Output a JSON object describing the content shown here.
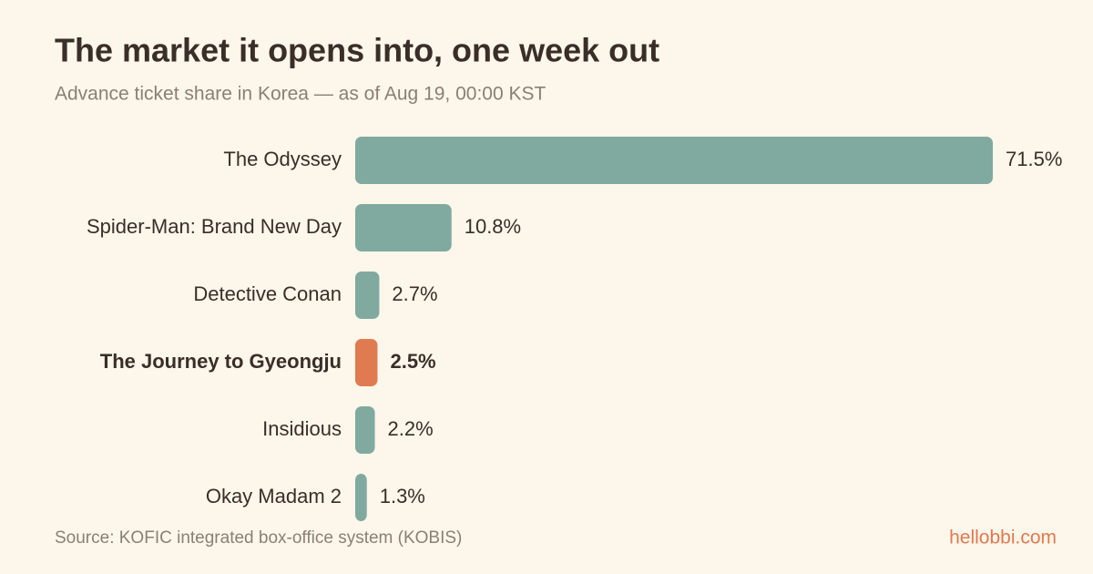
{
  "chart_data": {
    "type": "hbar",
    "title": "The market it opens into, one week out",
    "subtitle": "Advance ticket share in Korea — as of Aug 19, 00:00 KST",
    "categories": [
      "The Odyssey",
      "Spider-Man: Brand New Day",
      "Detective Conan",
      "The Journey to Gyeongju",
      "Insidious",
      "Okay Madam 2"
    ],
    "values": [
      71.5,
      10.8,
      2.7,
      2.5,
      2.2,
      1.3
    ],
    "value_labels": [
      "71.5%",
      "10.8%",
      "2.7%",
      "2.5%",
      "2.2%",
      "1.3%"
    ],
    "color": "#80a9a0",
    "highlight_index": 3,
    "highlight_color": "#e07a50",
    "xlim": [
      0,
      71.5
    ],
    "source": "Source: KOFIC integrated box-office system (KOBIS)",
    "brand": "hellobbi.com"
  }
}
